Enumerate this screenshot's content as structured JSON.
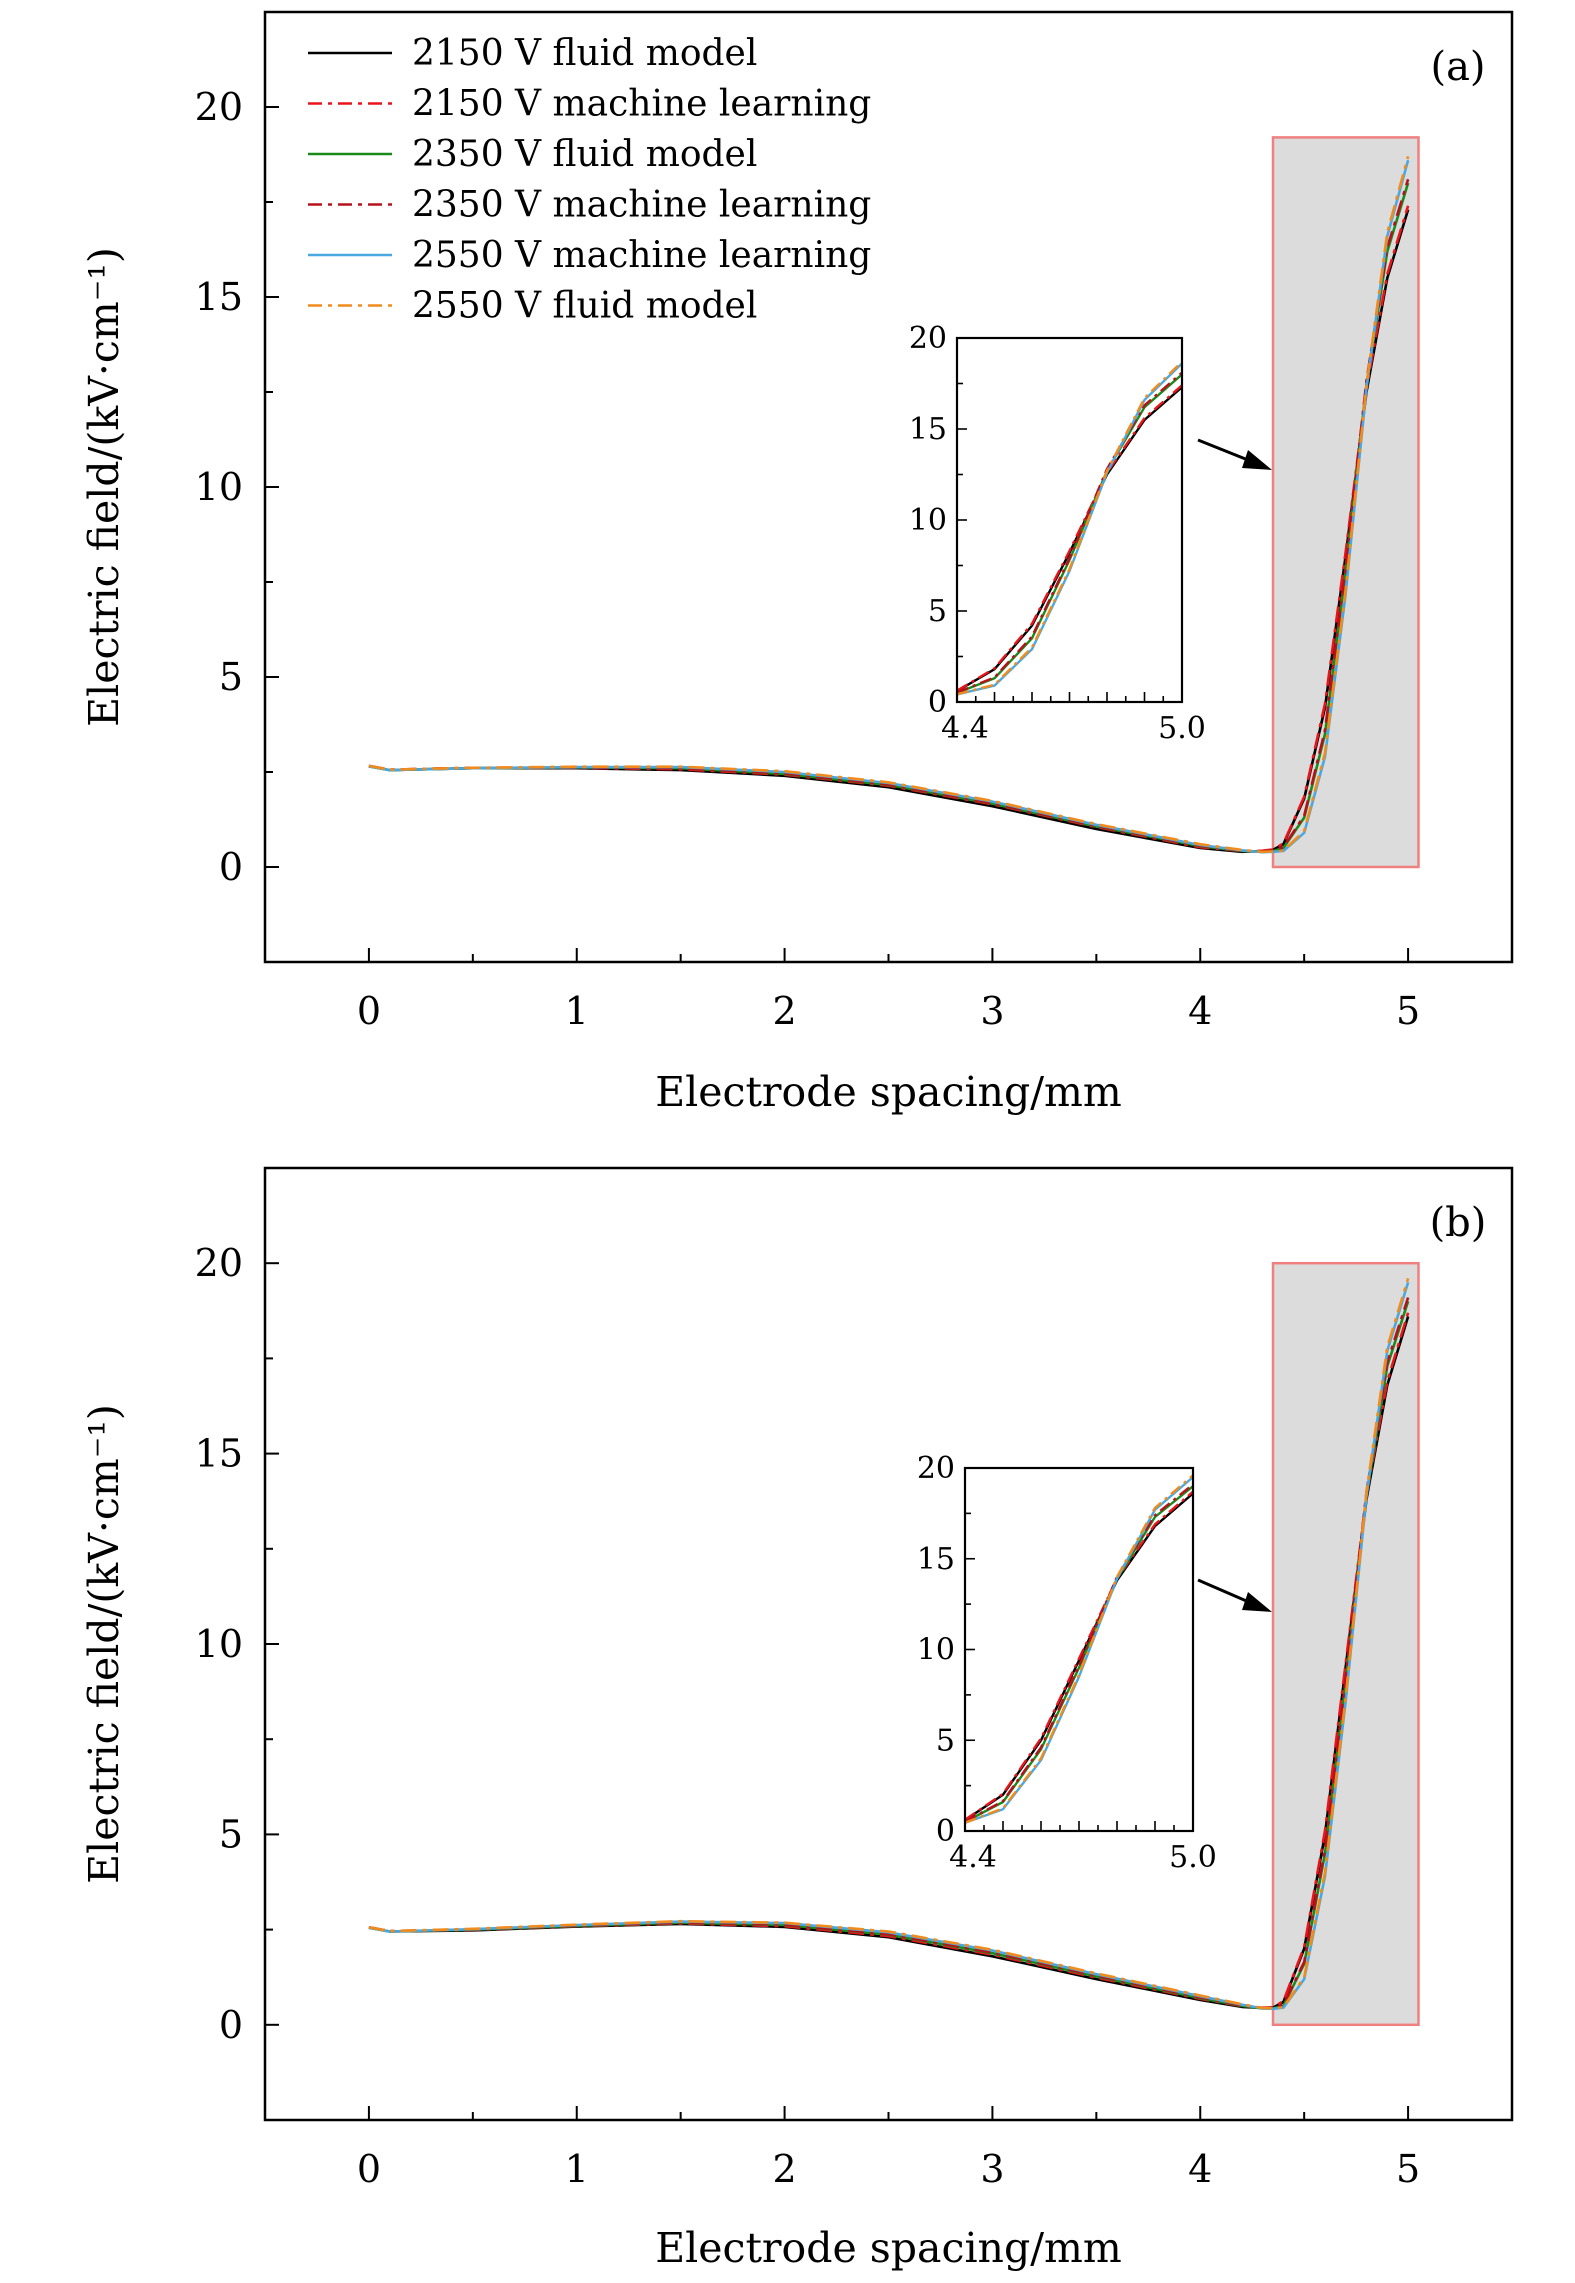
{
  "legend": [
    {
      "label": "2150 V fluid model",
      "color": "#000000",
      "dash": "solid"
    },
    {
      "label": "2150 V machine learning",
      "color": "#e8151b",
      "dash": "dashdot"
    },
    {
      "label": "2350 V fluid model",
      "color": "#1a8a1a",
      "dash": "solid"
    },
    {
      "label": "2350 V machine learning",
      "color": "#b5121b",
      "dash": "dashdot"
    },
    {
      "label": "2550 V machine learning",
      "color": "#4aa8e0",
      "dash": "solid"
    },
    {
      "label": "2550 V fluid model",
      "color": "#f08c1e",
      "dash": "dashdot"
    }
  ],
  "colors": {
    "zoom_box_fill": "#dcdcdc",
    "zoom_box_edge": "#f08080"
  },
  "chart_data": [
    {
      "type": "line",
      "panel_label": "(a)",
      "xlabel": "Electrode spacing/mm",
      "ylabel": "Electric field/(kV·cm⁻¹)",
      "xlim": [
        -0.5,
        5.5
      ],
      "ylim": [
        -2.5,
        22.5
      ],
      "xticks": [
        0,
        1,
        2,
        3,
        4,
        5
      ],
      "yticks": [
        0,
        5,
        10,
        15,
        20
      ],
      "zoom_region": {
        "x": [
          4.35,
          5.05
        ],
        "y": [
          0,
          19.2
        ]
      },
      "inset": {
        "xlim": [
          4.4,
          5.0
        ],
        "ylim": [
          0,
          20
        ],
        "xtick_labels": [
          "4.4",
          "5.0"
        ],
        "yticks": [
          0,
          5,
          10,
          15,
          20
        ]
      },
      "series": [
        {
          "name": "2150 V fluid model",
          "x": [
            0.0,
            0.1,
            0.5,
            1.0,
            1.5,
            2.0,
            2.5,
            3.0,
            3.5,
            4.0,
            4.2,
            4.3,
            4.35,
            4.4,
            4.5,
            4.6,
            4.7,
            4.8,
            4.9,
            5.0
          ],
          "y": [
            2.65,
            2.55,
            2.6,
            2.6,
            2.55,
            2.4,
            2.1,
            1.6,
            1.0,
            0.5,
            0.4,
            0.42,
            0.45,
            0.6,
            1.8,
            4.2,
            8.2,
            12.5,
            15.5,
            17.3
          ]
        },
        {
          "name": "2150 V machine learning",
          "x": [
            0.0,
            0.1,
            0.5,
            1.0,
            1.5,
            2.0,
            2.5,
            3.0,
            3.5,
            4.0,
            4.2,
            4.3,
            4.35,
            4.4,
            4.5,
            4.6,
            4.7,
            4.8,
            4.9,
            5.0
          ],
          "y": [
            2.66,
            2.56,
            2.61,
            2.61,
            2.57,
            2.43,
            2.14,
            1.65,
            1.05,
            0.52,
            0.42,
            0.43,
            0.46,
            0.62,
            1.85,
            4.3,
            8.3,
            12.6,
            15.6,
            17.4
          ]
        },
        {
          "name": "2350 V fluid model",
          "x": [
            0.0,
            0.1,
            0.5,
            1.0,
            1.5,
            2.0,
            2.5,
            3.0,
            3.5,
            4.0,
            4.2,
            4.3,
            4.35,
            4.4,
            4.5,
            4.6,
            4.7,
            4.8,
            4.9,
            5.0
          ],
          "y": [
            2.65,
            2.55,
            2.6,
            2.62,
            2.6,
            2.45,
            2.16,
            1.67,
            1.07,
            0.55,
            0.42,
            0.4,
            0.42,
            0.5,
            1.3,
            3.5,
            7.8,
            12.7,
            16.2,
            18.0
          ]
        },
        {
          "name": "2350 V machine learning",
          "x": [
            0.0,
            0.1,
            0.5,
            1.0,
            1.5,
            2.0,
            2.5,
            3.0,
            3.5,
            4.0,
            4.2,
            4.3,
            4.35,
            4.4,
            4.5,
            4.6,
            4.7,
            4.8,
            4.9,
            5.0
          ],
          "y": [
            2.66,
            2.56,
            2.61,
            2.62,
            2.6,
            2.46,
            2.17,
            1.68,
            1.08,
            0.56,
            0.43,
            0.41,
            0.43,
            0.52,
            1.35,
            3.6,
            7.9,
            12.8,
            16.3,
            18.1
          ]
        },
        {
          "name": "2550 V machine learning",
          "x": [
            0.0,
            0.1,
            0.5,
            1.0,
            1.5,
            2.0,
            2.5,
            3.0,
            3.5,
            4.0,
            4.2,
            4.3,
            4.35,
            4.4,
            4.5,
            4.6,
            4.7,
            4.8,
            4.9,
            5.0
          ],
          "y": [
            2.65,
            2.55,
            2.6,
            2.63,
            2.63,
            2.5,
            2.21,
            1.72,
            1.11,
            0.58,
            0.44,
            0.39,
            0.4,
            0.42,
            0.9,
            2.9,
            7.2,
            12.6,
            16.6,
            18.6
          ]
        },
        {
          "name": "2550 V fluid model",
          "x": [
            0.0,
            0.1,
            0.5,
            1.0,
            1.5,
            2.0,
            2.5,
            3.0,
            3.5,
            4.0,
            4.2,
            4.3,
            4.35,
            4.4,
            4.5,
            4.6,
            4.7,
            4.8,
            4.9,
            5.0
          ],
          "y": [
            2.66,
            2.56,
            2.61,
            2.64,
            2.64,
            2.52,
            2.23,
            1.74,
            1.13,
            0.6,
            0.45,
            0.4,
            0.41,
            0.43,
            0.95,
            3.0,
            7.3,
            12.7,
            16.7,
            18.7
          ]
        }
      ]
    },
    {
      "type": "line",
      "panel_label": "(b)",
      "xlabel": "Electrode spacing/mm",
      "ylabel": "Electric field/(kV·cm⁻¹)",
      "xlim": [
        -0.5,
        5.5
      ],
      "ylim": [
        -2.5,
        22.5
      ],
      "xticks": [
        0,
        1,
        2,
        3,
        4,
        5
      ],
      "yticks": [
        0,
        5,
        10,
        15,
        20
      ],
      "zoom_region": {
        "x": [
          4.35,
          5.05
        ],
        "y": [
          0,
          20
        ]
      },
      "inset": {
        "xlim": [
          4.4,
          5.0
        ],
        "ylim": [
          0,
          20
        ],
        "xtick_labels": [
          "4.4",
          "5.0"
        ],
        "yticks": [
          0,
          5,
          10,
          15,
          20
        ]
      },
      "series": [
        {
          "name": "2150 V fluid model",
          "x": [
            0.0,
            0.1,
            0.5,
            1.0,
            1.5,
            2.0,
            2.5,
            3.0,
            3.5,
            4.0,
            4.2,
            4.3,
            4.35,
            4.4,
            4.5,
            4.6,
            4.7,
            4.8,
            4.9,
            5.0
          ],
          "y": [
            2.55,
            2.45,
            2.48,
            2.58,
            2.65,
            2.57,
            2.3,
            1.8,
            1.2,
            0.65,
            0.47,
            0.44,
            0.45,
            0.6,
            2.0,
            5.0,
            9.4,
            13.8,
            16.8,
            18.6
          ]
        },
        {
          "name": "2150 V machine learning",
          "x": [
            0.0,
            0.1,
            0.5,
            1.0,
            1.5,
            2.0,
            2.5,
            3.0,
            3.5,
            4.0,
            4.2,
            4.3,
            4.35,
            4.4,
            4.5,
            4.6,
            4.7,
            4.8,
            4.9,
            5.0
          ],
          "y": [
            2.56,
            2.46,
            2.49,
            2.59,
            2.66,
            2.59,
            2.33,
            1.84,
            1.24,
            0.68,
            0.49,
            0.45,
            0.46,
            0.62,
            2.05,
            5.1,
            9.5,
            13.9,
            16.9,
            18.7
          ]
        },
        {
          "name": "2350 V fluid model",
          "x": [
            0.0,
            0.1,
            0.5,
            1.0,
            1.5,
            2.0,
            2.5,
            3.0,
            3.5,
            4.0,
            4.2,
            4.3,
            4.35,
            4.4,
            4.5,
            4.6,
            4.7,
            4.8,
            4.9,
            5.0
          ],
          "y": [
            2.55,
            2.45,
            2.5,
            2.6,
            2.68,
            2.62,
            2.37,
            1.88,
            1.27,
            0.7,
            0.5,
            0.43,
            0.43,
            0.5,
            1.6,
            4.5,
            9.0,
            13.9,
            17.3,
            19.0
          ]
        },
        {
          "name": "2350 V machine learning",
          "x": [
            0.0,
            0.1,
            0.5,
            1.0,
            1.5,
            2.0,
            2.5,
            3.0,
            3.5,
            4.0,
            4.2,
            4.3,
            4.35,
            4.4,
            4.5,
            4.6,
            4.7,
            4.8,
            4.9,
            5.0
          ],
          "y": [
            2.56,
            2.46,
            2.51,
            2.61,
            2.69,
            2.63,
            2.38,
            1.9,
            1.29,
            0.72,
            0.51,
            0.44,
            0.44,
            0.52,
            1.65,
            4.6,
            9.1,
            14.0,
            17.4,
            19.1
          ]
        },
        {
          "name": "2550 V machine learning",
          "x": [
            0.0,
            0.1,
            0.5,
            1.0,
            1.5,
            2.0,
            2.5,
            3.0,
            3.5,
            4.0,
            4.2,
            4.3,
            4.35,
            4.4,
            4.5,
            4.6,
            4.7,
            4.8,
            4.9,
            5.0
          ],
          "y": [
            2.55,
            2.45,
            2.51,
            2.62,
            2.71,
            2.67,
            2.43,
            1.95,
            1.33,
            0.75,
            0.53,
            0.43,
            0.42,
            0.45,
            1.2,
            3.9,
            8.5,
            13.9,
            17.7,
            19.5
          ]
        },
        {
          "name": "2550 V fluid model",
          "x": [
            0.0,
            0.1,
            0.5,
            1.0,
            1.5,
            2.0,
            2.5,
            3.0,
            3.5,
            4.0,
            4.2,
            4.3,
            4.35,
            4.4,
            4.5,
            4.6,
            4.7,
            4.8,
            4.9,
            5.0
          ],
          "y": [
            2.56,
            2.46,
            2.52,
            2.63,
            2.72,
            2.68,
            2.45,
            1.97,
            1.35,
            0.77,
            0.54,
            0.44,
            0.43,
            0.46,
            1.25,
            4.0,
            8.6,
            14.0,
            17.8,
            19.6
          ]
        }
      ]
    }
  ]
}
